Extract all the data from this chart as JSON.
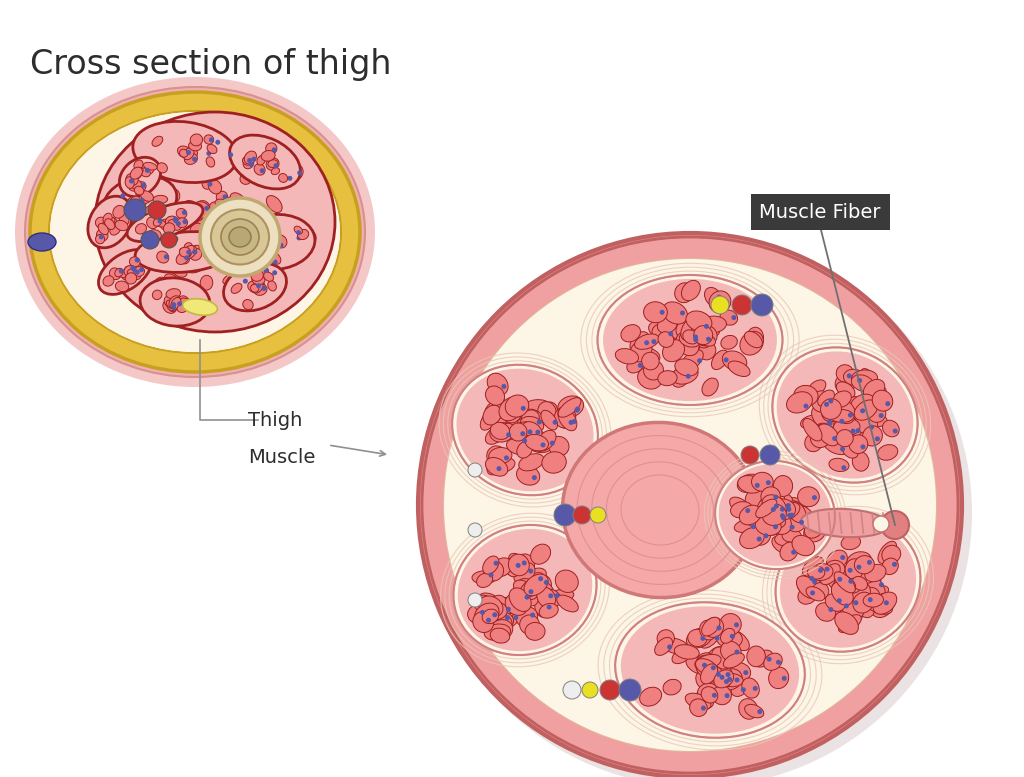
{
  "title": "Cross section of thigh",
  "title_fontsize": 24,
  "title_color": "#2d2d2d",
  "bg_color": "#ffffff",
  "label_thigh_muscle": "Thigh\nMuscle",
  "label_muscle_fiber": "Muscle Fiber",
  "pink_light": "#f5b8b8",
  "pink_mid": "#f08080",
  "pink_dark": "#e06060",
  "red_outline": "#9e2020",
  "cream": "#faebd7",
  "cream_light": "#fdf5e6",
  "gold": "#e8c040",
  "gold_dark": "#c8a020",
  "gold_light": "#f0d060",
  "nerve_tan": "#c8b890",
  "nerve_gray": "#b0a878",
  "outer_ring_pink": "#f0b8b8",
  "dot_blue": "#5858a8",
  "dot_red": "#cc3333",
  "dot_yellow": "#e8e020",
  "dot_white": "#eeeeee",
  "dot_dark_blue": "#4848a0",
  "connective_line": "#e8c8b8",
  "gray_line": "#707070"
}
